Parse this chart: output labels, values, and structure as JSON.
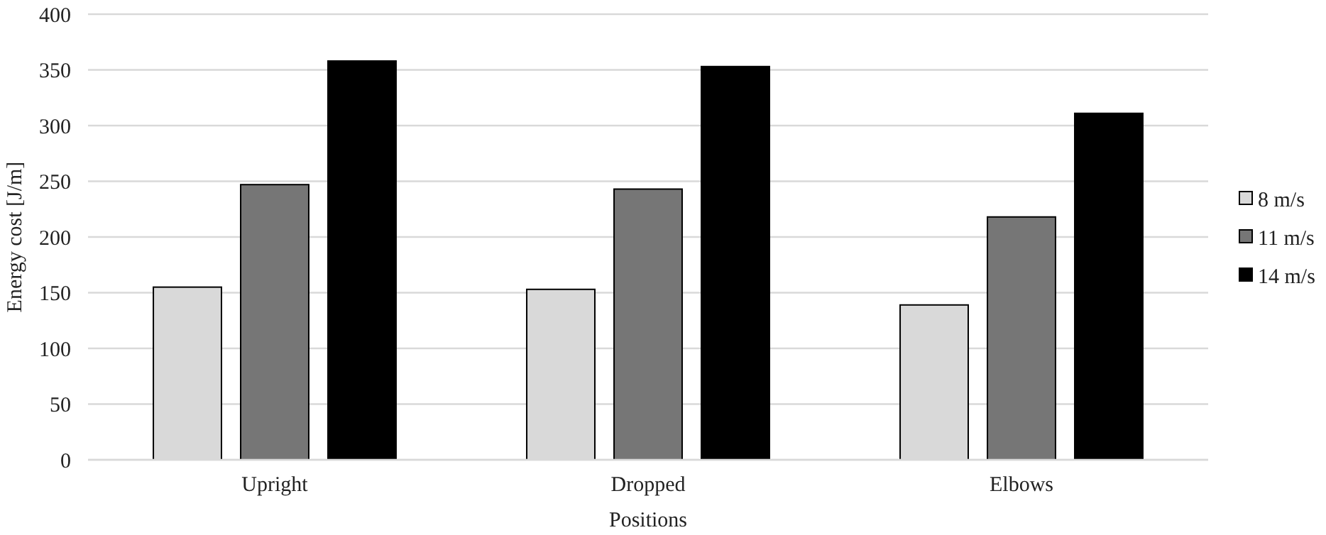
{
  "chart_data": {
    "type": "bar",
    "xlabel": "Positions",
    "ylabel": "Energy cost [J/m]",
    "categories": [
      "Upright",
      "Dropped",
      "Elbows"
    ],
    "series": [
      {
        "name": "8 m/s",
        "color": "#d9d9d9",
        "values": [
          155,
          153,
          139
        ]
      },
      {
        "name": "11 m/s",
        "color": "#767676",
        "values": [
          247,
          243,
          218
        ]
      },
      {
        "name": "14 m/s",
        "color": "#000000",
        "values": [
          358,
          353,
          311
        ]
      }
    ],
    "ylim": [
      0,
      400
    ],
    "yticks": [
      0,
      50,
      100,
      150,
      200,
      250,
      300,
      350,
      400
    ],
    "grid": "y",
    "legend": "right"
  }
}
